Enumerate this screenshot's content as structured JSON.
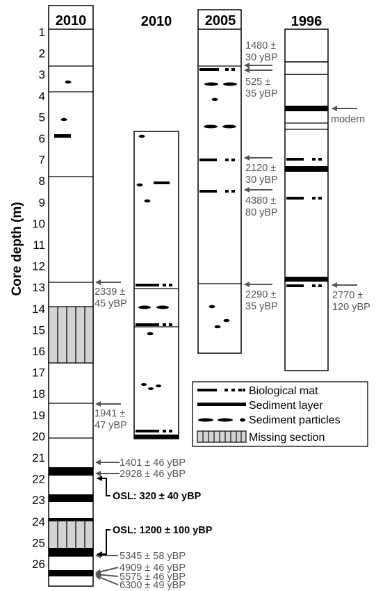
{
  "axis_label": "Core depth (m)",
  "depth_ticks": [
    "1",
    "2",
    "3",
    "4",
    "5",
    "6",
    "7",
    "8",
    "9",
    "10",
    "11",
    "12",
    "13",
    "14",
    "15",
    "16",
    "17",
    "18",
    "19",
    "20",
    "21",
    "22",
    "23",
    "24",
    "25",
    "26"
  ],
  "columns": [
    {
      "year": "2010",
      "boxed": true
    },
    {
      "year": "2010",
      "boxed": false
    },
    {
      "year": "2005",
      "boxed": true
    },
    {
      "year": "1996",
      "boxed": false
    }
  ],
  "dates": {
    "c1": [
      {
        "lines": [
          "2339 ±",
          "45 yBP"
        ]
      },
      {
        "lines": [
          "1941 ±",
          "47 yBP"
        ]
      },
      {
        "lines": [
          "1401 ± 46 yBP"
        ]
      },
      {
        "lines": [
          "2928 ± 46 yBP"
        ]
      },
      {
        "lines": [
          "5345 ± 58 yBP"
        ]
      },
      {
        "lines": [
          "4909 ± 46 yBP"
        ]
      },
      {
        "lines": [
          "5575 ± 46 yBP"
        ]
      },
      {
        "lines": [
          "6300 ± 49 yBP"
        ]
      }
    ],
    "c3": [
      {
        "lines": [
          "1480 ±",
          "30 yBP"
        ]
      },
      {
        "lines": [
          "525 ±",
          "35 yBP"
        ]
      },
      {
        "lines": [
          "2120 ±",
          "30 yBP"
        ]
      },
      {
        "lines": [
          "4380 ±",
          "80 yBP"
        ]
      },
      {
        "lines": [
          "2290 ±",
          "35 yBP"
        ]
      }
    ],
    "c4": [
      {
        "lines": [
          "modern"
        ]
      },
      {
        "lines": [
          "2770 ±",
          "120 yBP"
        ]
      }
    ]
  },
  "osl": [
    "OSL: 320 ± 40 yBP",
    "OSL: 1200 ± 100 yBP"
  ],
  "legend": [
    "Biological mat",
    "Sediment layer",
    "Sediment particles",
    "Missing section"
  ]
}
